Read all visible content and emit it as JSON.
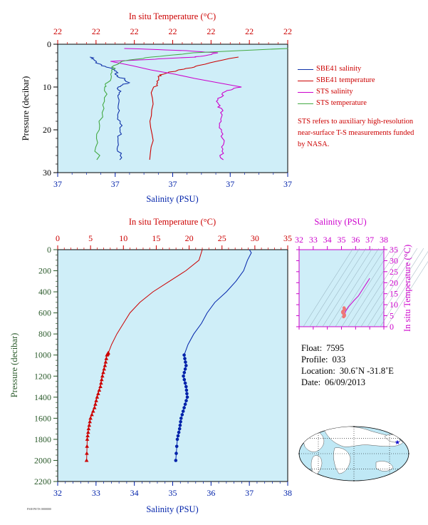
{
  "chart_data": [
    {
      "type": "line",
      "title": "",
      "top_axis_label": "In situ Temperature (°C)",
      "top_ticks": [
        "22",
        "22",
        "22",
        "22",
        "22",
        "22",
        "22"
      ],
      "bottom_axis_label": "Salinity (PSU)",
      "bottom_ticks": [
        "37",
        "37",
        "37",
        "37",
        "37"
      ],
      "ylabel": "Pressure (decibar)",
      "y_ticks": [
        "0",
        "10",
        "20",
        "30"
      ],
      "ylim": [
        0,
        30
      ],
      "series": [
        {
          "name": "SBE41 salinity",
          "color": "#1133aa",
          "x": [
            0.14,
            0.16,
            0.2,
            0.24,
            0.26,
            0.28,
            0.3,
            0.27,
            0.26,
            0.27,
            0.27,
            0.27,
            0.27,
            0.27
          ],
          "y": [
            3,
            4,
            5,
            6,
            7,
            8,
            9,
            10,
            12,
            15,
            18,
            21,
            24,
            27
          ]
        },
        {
          "name": "SBE41 temperature",
          "color": "#cc0000",
          "x": [
            0.78,
            0.62,
            0.52,
            0.46,
            0.43,
            0.42,
            0.41,
            0.4
          ],
          "y": [
            3,
            5,
            6,
            7,
            8,
            10,
            18,
            27
          ]
        },
        {
          "name": "STS salinity",
          "color": "#cc00cc",
          "x": [
            0.3,
            0.55,
            0.7,
            0.65,
            0.6,
            0.42,
            0.22,
            0.8,
            0.72,
            0.7,
            0.71,
            0.7,
            0.72,
            0.71,
            0.72
          ],
          "y": [
            1,
            1.5,
            2,
            2.5,
            3,
            3.5,
            4,
            10,
            11,
            13,
            15,
            18,
            21,
            24,
            27
          ]
        },
        {
          "name": "STS temperature",
          "color": "#44aa44",
          "x": [
            0.99,
            0.6,
            0.4,
            0.28,
            0.23,
            0.22,
            0.21,
            0.19,
            0.18,
            0.17
          ],
          "y": [
            1,
            2,
            3,
            4,
            6,
            9,
            10,
            15,
            21,
            27
          ]
        }
      ]
    },
    {
      "type": "line",
      "title": "",
      "top_axis_label": "In situ Temperature (°C)",
      "top_ticks": [
        "0",
        "5",
        "10",
        "15",
        "20",
        "25",
        "30",
        "35"
      ],
      "xlim_temperature": [
        0,
        35
      ],
      "bottom_axis_label": "Salinity (PSU)",
      "bottom_ticks": [
        "32",
        "33",
        "34",
        "35",
        "36",
        "37",
        "38"
      ],
      "xlim_salinity": [
        32,
        38
      ],
      "ylabel": "Pressure (decibar)",
      "y_ticks": [
        "0",
        "200",
        "400",
        "600",
        "800",
        "1000",
        "1200",
        "1400",
        "1600",
        "1800",
        "2000",
        "2200"
      ],
      "ylim": [
        0,
        2200
      ],
      "series": [
        {
          "name": "temperature",
          "color": "#cc0000",
          "x": [
            22.0,
            21.5,
            19.5,
            17.0,
            14.5,
            12.5,
            11.0,
            10.0,
            9.0,
            8.2,
            7.7,
            7.5,
            7.2,
            6.8,
            6.5,
            6.0,
            5.6,
            5.0,
            4.7,
            4.5,
            4.4
          ],
          "y": [
            0,
            100,
            200,
            300,
            400,
            500,
            600,
            700,
            800,
            900,
            980,
            1000,
            1100,
            1200,
            1300,
            1400,
            1500,
            1600,
            1700,
            1800,
            2000
          ]
        },
        {
          "name": "salinity",
          "color": "#0022aa",
          "x": [
            37.0,
            37.05,
            36.95,
            36.85,
            36.65,
            36.4,
            36.1,
            35.9,
            35.75,
            35.55,
            35.4,
            35.3,
            35.35,
            35.28,
            35.35,
            35.38,
            35.3,
            35.22,
            35.18,
            35.12,
            35.08
          ],
          "y": [
            0,
            30,
            100,
            200,
            300,
            400,
            500,
            600,
            700,
            800,
            900,
            1000,
            1100,
            1200,
            1300,
            1400,
            1500,
            1600,
            1700,
            1800,
            2000
          ]
        }
      ]
    },
    {
      "type": "scatter",
      "title": "",
      "top_axis_label": "Salinity (PSU)",
      "top_ticks": [
        "32",
        "33",
        "34",
        "35",
        "36",
        "37",
        "38"
      ],
      "xlim": [
        32,
        38
      ],
      "right_axis_label": "In situ Temperature (°C)",
      "right_ticks": [
        "0",
        "5",
        "10",
        "15",
        "20",
        "25",
        "30",
        "35"
      ],
      "ylim": [
        0,
        35
      ],
      "series": [
        {
          "name": "T-S",
          "color": "#cc00cc",
          "x": [
            37.0,
            36.8,
            36.5,
            36.2,
            35.9,
            35.7,
            35.5,
            35.4,
            35.3,
            35.25,
            35.2,
            35.15,
            35.1
          ],
          "y": [
            22,
            20,
            17,
            14,
            12,
            10.5,
            9,
            8,
            7,
            6,
            5.5,
            5,
            4.5
          ]
        }
      ]
    }
  ],
  "legend": [
    {
      "label": "SBE41 salinity",
      "color": "#1133aa"
    },
    {
      "label": "SBE41 temperature",
      "color": "#cc0000"
    },
    {
      "label": "STS salinity",
      "color": "#cc00cc"
    },
    {
      "label": "STS temperature",
      "color": "#44aa44"
    }
  ],
  "note": "STS refers to auxiliary high-resolution near-surface T-S measurements funded by NASA.",
  "info": {
    "float_label": "Float:",
    "float_value": "7595",
    "profile_label": "Profile:",
    "profile_value": "033",
    "location_label": "Location:",
    "location_value": "30.6˚N  -31.8˚E",
    "date_label": "Date:",
    "date_value": "06/09/2013"
  },
  "map": {
    "marker": "star",
    "marker_color": "#0000cc"
  },
  "footer_stamp": "FSI0 P0/TS 0000000"
}
